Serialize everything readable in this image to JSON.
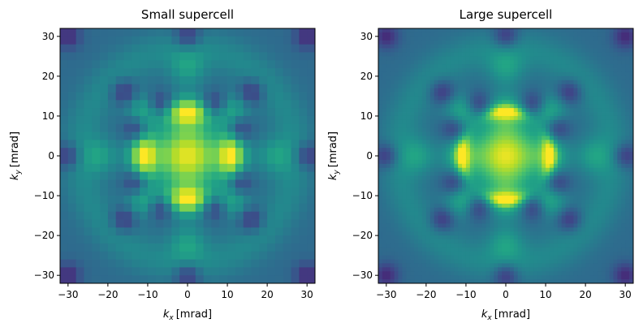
{
  "chart_data": [
    {
      "type": "heatmap",
      "title": "Small supercell",
      "xlabel_base": "k",
      "xlabel_sub": "x",
      "xlabel_unit": "[mrad]",
      "ylabel_base": "k",
      "ylabel_sub": "y",
      "ylabel_unit": "[mrad]",
      "xlim": [
        -32,
        32
      ],
      "ylim": [
        -32,
        32
      ],
      "x_ticks": [
        "−30",
        "−20",
        "−10",
        "0",
        "10",
        "20",
        "30"
      ],
      "x_tick_values": [
        -30,
        -20,
        -10,
        0,
        10,
        20,
        30
      ],
      "y_ticks": [
        "30",
        "20",
        "10",
        "0",
        "−10",
        "−20",
        "−30"
      ],
      "y_tick_values": [
        30,
        20,
        10,
        0,
        -10,
        -20,
        -30
      ],
      "grid_cells": 32,
      "colormap": "viridis",
      "grid": false
    },
    {
      "type": "heatmap",
      "title": "Large supercell",
      "xlabel_base": "k",
      "xlabel_sub": "x",
      "xlabel_unit": "[mrad]",
      "ylabel_base": "k",
      "ylabel_sub": "y",
      "ylabel_unit": "[mrad]",
      "xlim": [
        -32,
        32
      ],
      "ylim": [
        -32,
        32
      ],
      "x_ticks": [
        "−30",
        "−20",
        "−10",
        "0",
        "10",
        "20",
        "30"
      ],
      "x_tick_values": [
        -30,
        -20,
        -10,
        0,
        10,
        20,
        30
      ],
      "y_ticks": [
        "30",
        "20",
        "10",
        "0",
        "−10",
        "−20",
        "−30"
      ],
      "y_tick_values": [
        30,
        20,
        10,
        0,
        -10,
        -20,
        -30
      ],
      "grid_cells": 64,
      "colormap": "viridis",
      "grid": false
    }
  ],
  "colors": {
    "viridis_dark": "#440154",
    "viridis_mid_dark": "#3b528b",
    "viridis_mid": "#21918c",
    "viridis_mid_light": "#5ec962",
    "viridis_light": "#fde725"
  }
}
